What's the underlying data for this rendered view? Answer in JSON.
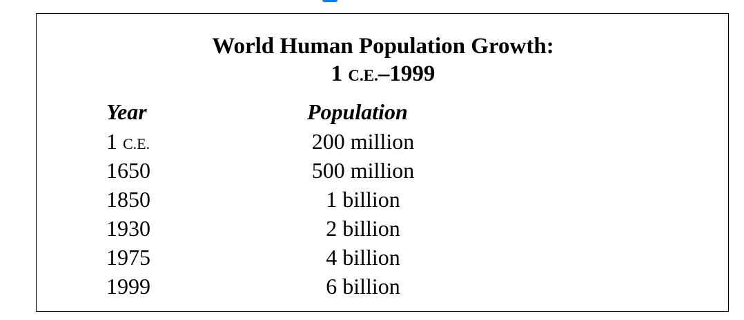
{
  "table": {
    "title_line1": "World Human Population Growth:",
    "title_line2_prefix": "1 ",
    "title_line2_era": "C.E.",
    "title_line2_suffix": "–1999",
    "headers": {
      "year": "Year",
      "population": "Population"
    },
    "rows": [
      {
        "year": "1",
        "era": "C.E.",
        "population": "200 million"
      },
      {
        "year": "1650",
        "era": "",
        "population": "500 million"
      },
      {
        "year": "1850",
        "era": "",
        "population": "1 billion"
      },
      {
        "year": "1930",
        "era": "",
        "population": "2 billion"
      },
      {
        "year": "1975",
        "era": "",
        "population": "4 billion"
      },
      {
        "year": "1999",
        "era": "",
        "population": "6 billion"
      }
    ]
  },
  "colors": {
    "border": "#000000",
    "text": "#000000",
    "top_accent": "#1a73e8"
  }
}
